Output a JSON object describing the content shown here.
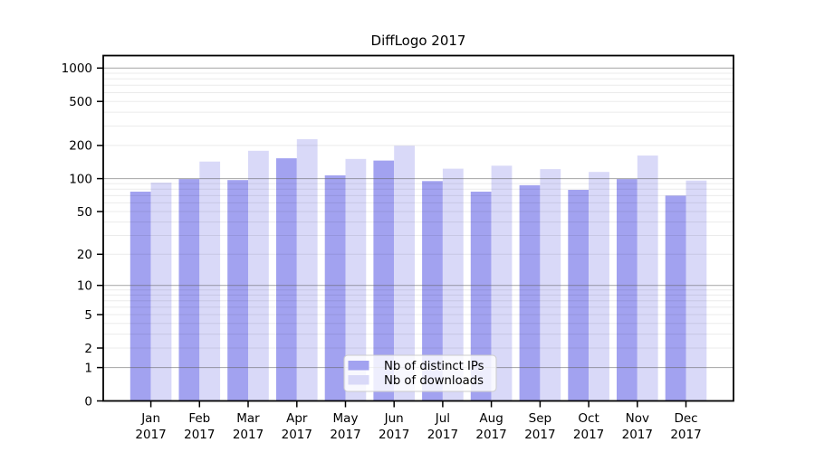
{
  "chart_data": {
    "type": "bar",
    "title": "DiffLogo 2017",
    "categories": [
      "Jan",
      "Feb",
      "Mar",
      "Apr",
      "May",
      "Jun",
      "Jul",
      "Aug",
      "Sep",
      "Oct",
      "Nov",
      "Dec"
    ],
    "year_label": "2017",
    "series": [
      {
        "name": "Nb of distinct IPs",
        "color": "#a2a2f0",
        "values": [
          76,
          99,
          97,
          153,
          107,
          146,
          95,
          76,
          87,
          79,
          99,
          70
        ]
      },
      {
        "name": "Nb of downloads",
        "color": "#d9d9f8",
        "values": [
          92,
          143,
          179,
          228,
          151,
          199,
          123,
          131,
          122,
          115,
          162,
          96
        ]
      }
    ],
    "y_axis": {
      "scale": "log1p",
      "tick_values": [
        0,
        1,
        2,
        5,
        10,
        20,
        50,
        100,
        200,
        500,
        1000
      ],
      "ylim": [
        0,
        1300
      ]
    },
    "xlabel": "",
    "ylabel": "",
    "grid": "on",
    "legend": {
      "position": "lower-center"
    },
    "colors": {
      "background": "#ffffff",
      "spine": "#000000",
      "grid_major": "rgba(96,96,96,0.50)",
      "grid_minor": "rgba(0,0,0,0.08)",
      "legend_border": "#cccccc",
      "legend_fill": "rgba(255,255,255,0.82)"
    }
  }
}
